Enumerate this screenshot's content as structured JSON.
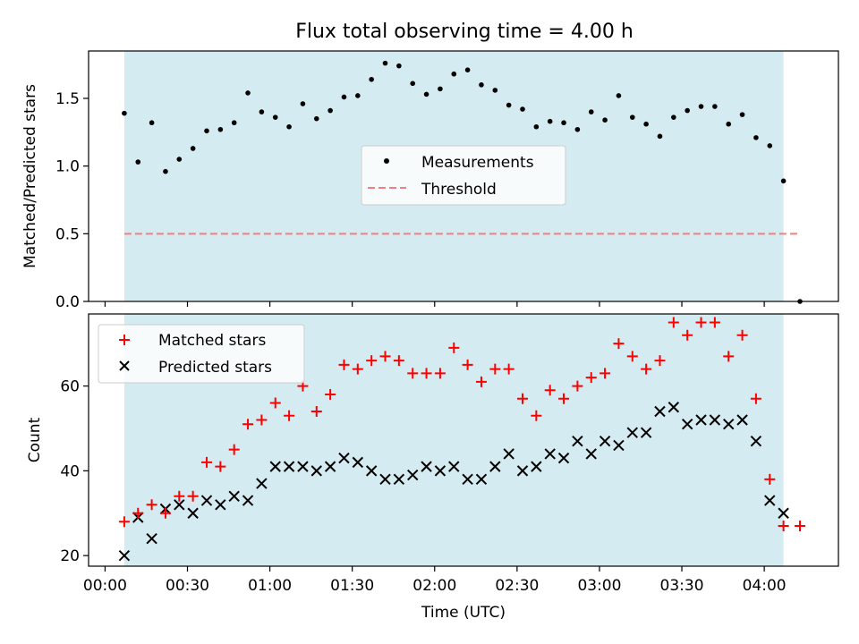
{
  "title": "Flux total observing time = 4.00 h",
  "xlabel": "Time (UTC)",
  "xticks": [
    "00:00",
    "00:30",
    "01:00",
    "01:30",
    "02:00",
    "02:30",
    "03:00",
    "03:30",
    "04:00"
  ],
  "colors": {
    "band": "#d4ebf1",
    "measurements": "#000000",
    "threshold": "#f08080",
    "matched": "#ff0000",
    "predicted": "#000000"
  },
  "chart_data": [
    {
      "type": "scatter",
      "ylabel": "Matched/Predicted stars",
      "xlim": [
        "-00:06",
        "04:27"
      ],
      "ylim": [
        0,
        1.85
      ],
      "yticks": [
        "0.0",
        "0.5",
        "1.0",
        "1.5"
      ],
      "observing_window": [
        "00:07",
        "04:07"
      ],
      "legend": {
        "location": "center",
        "entries": [
          "Measurements",
          "Threshold"
        ]
      },
      "threshold": {
        "name": "Threshold",
        "value": 0.5,
        "x_range": [
          "00:07",
          "04:13"
        ]
      },
      "series": [
        {
          "name": "Measurements",
          "x": [
            "00:07",
            "00:12",
            "00:17",
            "00:22",
            "00:27",
            "00:32",
            "00:37",
            "00:42",
            "00:47",
            "00:52",
            "00:57",
            "01:02",
            "01:07",
            "01:12",
            "01:17",
            "01:22",
            "01:27",
            "01:32",
            "01:37",
            "01:42",
            "01:47",
            "01:52",
            "01:57",
            "02:02",
            "02:07",
            "02:12",
            "02:17",
            "02:22",
            "02:27",
            "02:32",
            "02:37",
            "02:42",
            "02:47",
            "02:52",
            "02:57",
            "03:02",
            "03:07",
            "03:12",
            "03:17",
            "03:22",
            "03:27",
            "03:32",
            "03:37",
            "03:42",
            "03:47",
            "03:52",
            "03:57",
            "04:02",
            "04:07",
            "04:13"
          ],
          "y": [
            1.39,
            1.03,
            1.32,
            0.96,
            1.05,
            1.13,
            1.26,
            1.27,
            1.32,
            1.54,
            1.4,
            1.36,
            1.29,
            1.46,
            1.35,
            1.41,
            1.51,
            1.52,
            1.64,
            1.76,
            1.74,
            1.61,
            1.53,
            1.57,
            1.68,
            1.71,
            1.6,
            1.56,
            1.45,
            1.42,
            1.29,
            1.33,
            1.32,
            1.27,
            1.4,
            1.34,
            1.52,
            1.36,
            1.31,
            1.22,
            1.36,
            1.41,
            1.44,
            1.44,
            1.31,
            1.38,
            1.21,
            1.15,
            0.89,
            0.0
          ]
        }
      ]
    },
    {
      "type": "scatter",
      "ylabel": "Count",
      "xlabel": "Time (UTC)",
      "xlim": [
        "-00:06",
        "04:27"
      ],
      "ylim": [
        17.5,
        77
      ],
      "yticks": [
        "20",
        "40",
        "60"
      ],
      "observing_window": [
        "00:07",
        "04:07"
      ],
      "legend": {
        "location": "upper left",
        "entries": [
          "Matched stars",
          "Predicted stars"
        ]
      },
      "series": [
        {
          "name": "Matched stars",
          "marker": "+",
          "x": [
            "00:07",
            "00:12",
            "00:17",
            "00:22",
            "00:27",
            "00:32",
            "00:37",
            "00:42",
            "00:47",
            "00:52",
            "00:57",
            "01:02",
            "01:07",
            "01:12",
            "01:17",
            "01:22",
            "01:27",
            "01:32",
            "01:37",
            "01:42",
            "01:47",
            "01:52",
            "01:57",
            "02:02",
            "02:07",
            "02:12",
            "02:17",
            "02:22",
            "02:27",
            "02:32",
            "02:37",
            "02:42",
            "02:47",
            "02:52",
            "02:57",
            "03:02",
            "03:07",
            "03:12",
            "03:17",
            "03:22",
            "03:27",
            "03:32",
            "03:37",
            "03:42",
            "03:47",
            "03:52",
            "03:57",
            "04:02",
            "04:07",
            "04:13"
          ],
          "y": [
            28,
            30,
            32,
            30,
            34,
            34,
            42,
            41,
            45,
            51,
            52,
            56,
            53,
            60,
            54,
            58,
            65,
            64,
            66,
            67,
            66,
            63,
            63,
            63,
            69,
            65,
            61,
            64,
            64,
            57,
            53,
            59,
            57,
            60,
            62,
            63,
            70,
            67,
            64,
            66,
            75,
            72,
            75,
            75,
            67,
            72,
            57,
            38,
            27,
            27
          ]
        },
        {
          "name": "Predicted stars",
          "marker": "x",
          "x": [
            "00:07",
            "00:12",
            "00:17",
            "00:22",
            "00:27",
            "00:32",
            "00:37",
            "00:42",
            "00:47",
            "00:52",
            "00:57",
            "01:02",
            "01:07",
            "01:12",
            "01:17",
            "01:22",
            "01:27",
            "01:32",
            "01:37",
            "01:42",
            "01:47",
            "01:52",
            "01:57",
            "02:02",
            "02:07",
            "02:12",
            "02:17",
            "02:22",
            "02:27",
            "02:32",
            "02:37",
            "02:42",
            "02:47",
            "02:52",
            "02:57",
            "03:02",
            "03:07",
            "03:12",
            "03:17",
            "03:22",
            "03:27",
            "03:32",
            "03:37",
            "03:42",
            "03:47",
            "03:52",
            "03:57",
            "04:02",
            "04:07"
          ],
          "y": [
            20,
            29,
            24,
            31,
            32,
            30,
            33,
            32,
            34,
            33,
            37,
            41,
            41,
            41,
            40,
            41,
            43,
            42,
            40,
            38,
            38,
            39,
            41,
            40,
            41,
            38,
            38,
            41,
            44,
            40,
            41,
            44,
            43,
            47,
            44,
            47,
            46,
            49,
            49,
            54,
            55,
            51,
            52,
            52,
            51,
            52,
            47,
            33,
            30
          ]
        }
      ]
    }
  ]
}
